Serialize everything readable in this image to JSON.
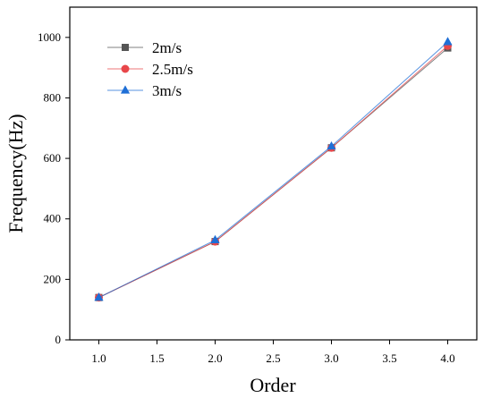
{
  "chart_data": {
    "type": "line",
    "title": "",
    "xlabel": "Order",
    "ylabel": "Frequency(Hz)",
    "x": [
      1.0,
      2.0,
      3.0,
      4.0
    ],
    "xlim": [
      0.75,
      4.25
    ],
    "ylim": [
      0,
      1100
    ],
    "xticks": [
      1.0,
      1.5,
      2.0,
      2.5,
      3.0,
      3.5,
      4.0
    ],
    "xtick_labels": [
      "1.0",
      "1.5",
      "2.0",
      "2.5",
      "3.0",
      "3.5",
      "4.0"
    ],
    "yticks": [
      0,
      200,
      400,
      600,
      800,
      1000
    ],
    "ytick_labels": [
      "0",
      "200",
      "400",
      "600",
      "800",
      "1000"
    ],
    "grid": false,
    "legend_position": "top-left",
    "series": [
      {
        "name": "2m/s",
        "color": "#555555",
        "marker": "square",
        "values": [
          140,
          325,
          635,
          965
        ]
      },
      {
        "name": "2.5m/s",
        "color": "#e8464a",
        "marker": "circle",
        "values": [
          140,
          325,
          635,
          972
        ]
      },
      {
        "name": "3m/s",
        "color": "#1f6fd6",
        "marker": "triangle",
        "values": [
          140,
          330,
          640,
          985
        ]
      }
    ]
  }
}
